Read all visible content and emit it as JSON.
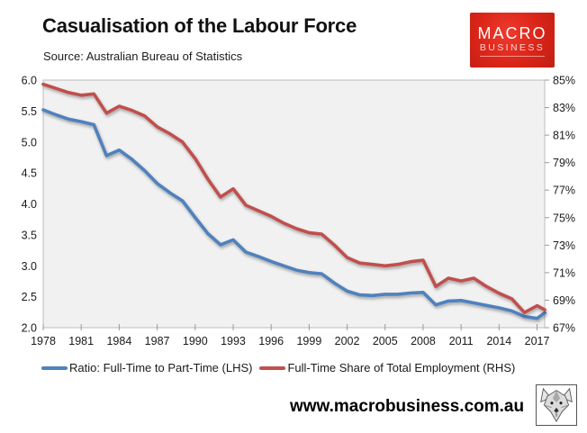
{
  "header": {
    "title": "Casualisation of the Labour Force",
    "source": "Source: Australian Bureau of Statistics",
    "logo": {
      "line1": "MACRO",
      "line2": "BUSINESS",
      "bg_color": "#d8261c",
      "text_color": "#ffffff"
    }
  },
  "chart_data": {
    "type": "line",
    "title": "Casualisation of the Labour Force",
    "plot_bg": "#f1f1f1",
    "border_color": "#bdbdbd",
    "tick_color": "#999999",
    "label_color": "#1a1a1a",
    "grid": false,
    "x_domain": [
      1978,
      2017.6
    ],
    "x_tick_values": [
      1978,
      1981,
      1984,
      1987,
      1990,
      1993,
      1996,
      1999,
      2002,
      2005,
      2008,
      2011,
      2014,
      2017
    ],
    "x_tick_labels": [
      "1978",
      "1981",
      "1984",
      "1987",
      "1990",
      "1993",
      "1996",
      "1999",
      "2002",
      "2005",
      "2008",
      "2011",
      "2014",
      "2017"
    ],
    "left_axis": {
      "min": 2.0,
      "max": 6.0,
      "tick_values": [
        6.0,
        5.5,
        5.0,
        4.5,
        4.0,
        3.5,
        3.0,
        2.5,
        2.0
      ],
      "tick_labels": [
        "6.0",
        "5.5",
        "5.0",
        "4.5",
        "4.0",
        "3.5",
        "3.0",
        "2.5",
        "2.0"
      ]
    },
    "right_axis": {
      "min": 67,
      "max": 85,
      "tick_values": [
        85,
        83,
        81,
        79,
        77,
        75,
        73,
        71,
        69,
        67
      ],
      "tick_labels": [
        "85%",
        "83%",
        "81%",
        "79%",
        "77%",
        "75%",
        "73%",
        "71%",
        "69%",
        "67%"
      ]
    },
    "x": [
      1978,
      1979,
      1980,
      1981,
      1982,
      1983,
      1984,
      1985,
      1986,
      1987,
      1988,
      1989,
      1990,
      1991,
      1992,
      1993,
      1994,
      1995,
      1996,
      1997,
      1998,
      1999,
      2000,
      2001,
      2002,
      2003,
      2004,
      2005,
      2006,
      2007,
      2008,
      2009,
      2010,
      2011,
      2012,
      2013,
      2014,
      2015,
      2016,
      2017,
      2017.6
    ],
    "series": [
      {
        "name": "Ratio: Full-Time to Part-Time (LHS)",
        "axis": "left",
        "color": "#4F81BD",
        "values": [
          5.52,
          5.44,
          5.37,
          5.33,
          5.28,
          4.78,
          4.87,
          4.72,
          4.54,
          4.33,
          4.18,
          4.05,
          3.78,
          3.52,
          3.34,
          3.42,
          3.22,
          3.15,
          3.07,
          3.0,
          2.93,
          2.89,
          2.87,
          2.72,
          2.59,
          2.53,
          2.52,
          2.54,
          2.54,
          2.56,
          2.57,
          2.37,
          2.43,
          2.44,
          2.4,
          2.36,
          2.32,
          2.27,
          2.18,
          2.15,
          2.24
        ]
      },
      {
        "name": "Full-Time Share of Total Employment (RHS)",
        "axis": "right",
        "color": "#C0504D",
        "values": [
          84.7,
          84.4,
          84.1,
          83.9,
          84.0,
          82.6,
          83.1,
          82.8,
          82.4,
          81.6,
          81.1,
          80.5,
          79.3,
          77.8,
          76.5,
          77.1,
          75.9,
          75.5,
          75.1,
          74.6,
          74.2,
          73.9,
          73.8,
          73.0,
          72.1,
          71.7,
          71.6,
          71.5,
          71.6,
          71.8,
          71.9,
          70.0,
          70.6,
          70.4,
          70.6,
          70.0,
          69.5,
          69.1,
          68.1,
          68.6,
          68.3
        ]
      }
    ],
    "legend_position": "bottom"
  },
  "legend": [
    {
      "label": "Ratio: Full-Time to Part-Time (LHS)",
      "color": "#4F81BD"
    },
    {
      "label": "Full-Time Share of Total Employment (RHS)",
      "color": "#C0504D"
    }
  ],
  "footer": {
    "website": "www.macrobusiness.com.au"
  }
}
